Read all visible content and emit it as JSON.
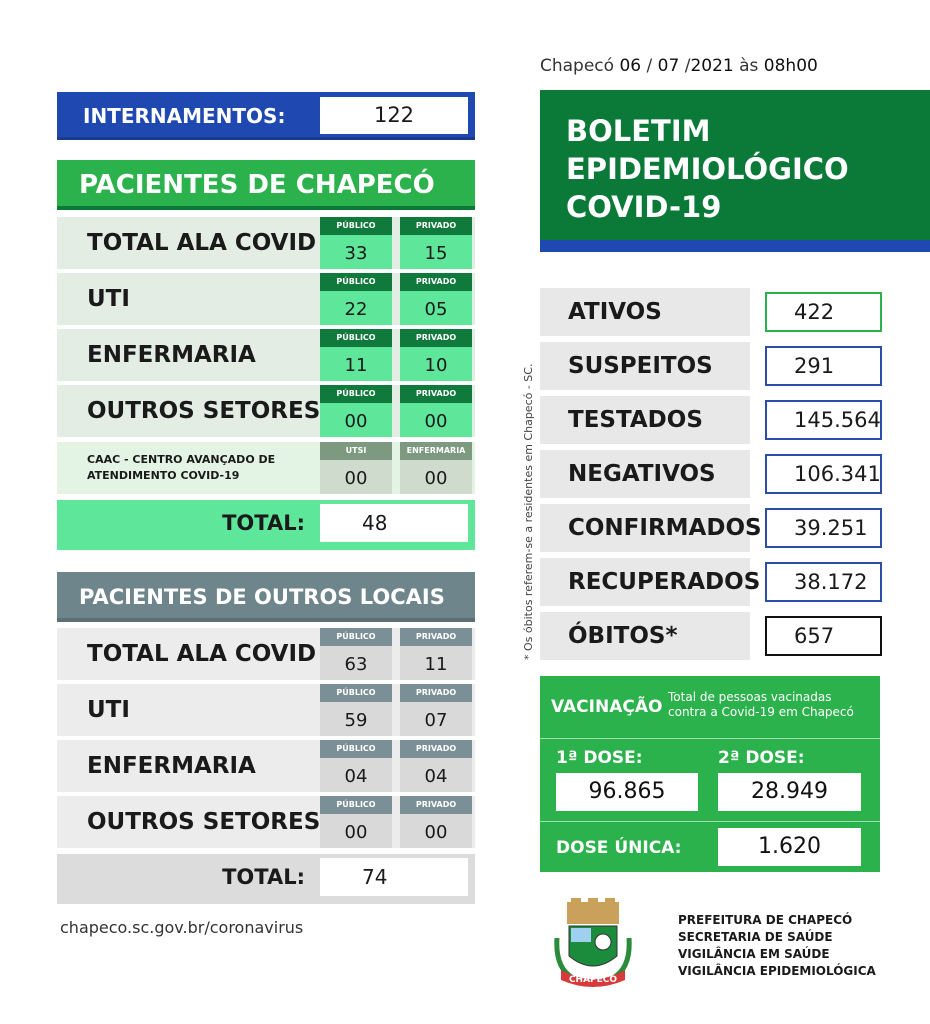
{
  "header": {
    "city": "Chapecó",
    "day": "06",
    "month": "07",
    "year": "2021",
    "sep": "/",
    "at": "às",
    "time": "08h00"
  },
  "title": {
    "line1": "BOLETIM",
    "line2": "EPIDEMIOLÓGICO",
    "line3": "COVID-19"
  },
  "internamentos": {
    "label": "INTERNAMENTOS:",
    "value": "122"
  },
  "chapeco": {
    "title": "PACIENTES DE CHAPECÓ",
    "rows": [
      {
        "label": "TOTAL ALA COVID",
        "h1": "PÚBLICO",
        "v1": "33",
        "h2": "PRIVADO",
        "v2": "15"
      },
      {
        "label": "UTI",
        "h1": "PÚBLICO",
        "v1": "22",
        "h2": "PRIVADO",
        "v2": "05"
      },
      {
        "label": "ENFERMARIA",
        "h1": "PÚBLICO",
        "v1": "11",
        "h2": "PRIVADO",
        "v2": "10"
      },
      {
        "label": "OUTROS SETORES",
        "h1": "PÚBLICO",
        "v1": "00",
        "h2": "PRIVADO",
        "v2": "00"
      }
    ],
    "caac": {
      "line1": "CAAC - CENTRO  AVANÇADO DE",
      "line2": "ATENDIMENTO COVID-19",
      "h1": "UTSI",
      "v1": "00",
      "h2": "ENFERMARIA",
      "v2": "00"
    },
    "total_label": "TOTAL:",
    "total": "48"
  },
  "outros": {
    "title": "PACIENTES DE OUTROS LOCAIS",
    "rows": [
      {
        "label": "TOTAL ALA COVID",
        "h1": "PÚBLICO",
        "v1": "63",
        "h2": "PRIVADO",
        "v2": "11"
      },
      {
        "label": "UTI",
        "h1": "PÚBLICO",
        "v1": "59",
        "h2": "PRIVADO",
        "v2": "07"
      },
      {
        "label": "ENFERMARIA",
        "h1": "PÚBLICO",
        "v1": "04",
        "h2": "PRIVADO",
        "v2": "04"
      },
      {
        "label": "OUTROS SETORES",
        "h1": "PÚBLICO",
        "v1": "00",
        "h2": "PRIVADO",
        "v2": "00"
      }
    ],
    "total_label": "TOTAL:",
    "total": "74"
  },
  "website": "chapeco.sc.gov.br/coronavirus",
  "note": "* Os óbitos referem-se a residentes em Chapecó - SC.",
  "stats": [
    {
      "label": "ATIVOS",
      "value": "422",
      "border": "#2cb24c"
    },
    {
      "label": "SUSPEITOS",
      "value": "291",
      "border": "#2b4fa8"
    },
    {
      "label": "TESTADOS",
      "value": "145.564",
      "border": "#2b4fa8"
    },
    {
      "label": "NEGATIVOS",
      "value": "106.341",
      "border": "#2b4fa8"
    },
    {
      "label": "CONFIRMADOS",
      "value": "39.251",
      "border": "#2b4fa8"
    },
    {
      "label": "RECUPERADOS",
      "value": "38.172",
      "border": "#2b4fa8"
    },
    {
      "label": "ÓBITOS*",
      "value": "657",
      "border": "#111111"
    }
  ],
  "vacinacao": {
    "label": "VACINAÇÃO",
    "desc1": "Total de pessoas vacinadas",
    "desc2": "contra a Covid-19 em Chapecó",
    "dose1_label": "1ª DOSE:",
    "dose1": "96.865",
    "dose2_label": "2ª DOSE:",
    "dose2": "28.949",
    "unica_label": "DOSE ÚNICA:",
    "unica": "1.620"
  },
  "footer": {
    "l1": "PREFEITURA DE CHAPECÓ",
    "l2": "SECRETARIA DE SAÚDE",
    "l3": "VIGILÂNCIA EM SAÚDE",
    "l4": "VIGILÂNCIA EPIDEMIOLÓGICA",
    "logo_text": "CHAPECÓ"
  },
  "colors": {
    "blue": "#1f48b0",
    "green": "#2cb24c",
    "dark_green": "#0b7a38",
    "mint": "#5ee69a",
    "gray": "#6e858c"
  }
}
